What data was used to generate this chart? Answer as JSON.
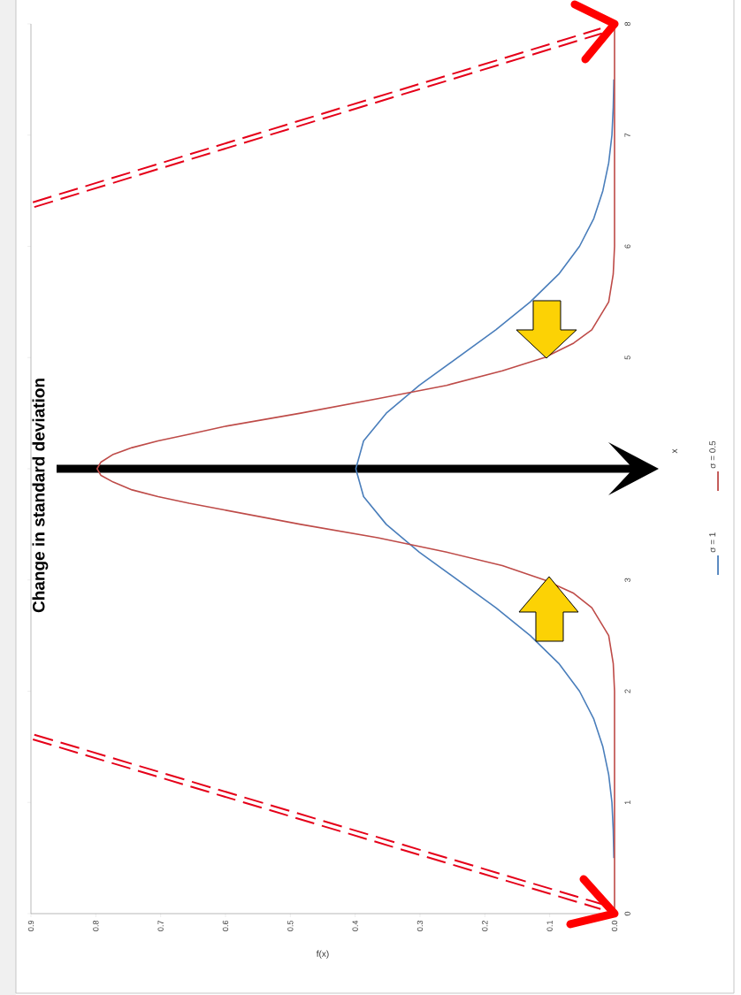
{
  "chart_data": {
    "type": "line",
    "title": "Change in standard deviation",
    "xlabel": "f(x)",
    "ylabel": "x",
    "xlim": [
      0.9,
      0
    ],
    "xticks": [
      0.9,
      0.8,
      0.7,
      0.6,
      0.5,
      0.4,
      0.3,
      0.2,
      0.1,
      {
        "value": 0,
        "label": "0.0"
      }
    ],
    "ylim": [
      0,
      8
    ],
    "yticks": [
      0,
      1,
      2,
      3,
      {
        "value": 4,
        "label": null
      },
      5,
      6,
      7,
      8
    ],
    "legend": "right",
    "series": [
      {
        "name": "σ = 1",
        "color": "#4a7ebb",
        "x": [
          0.001,
          0.002,
          0.004,
          0.009,
          0.018,
          0.032,
          0.054,
          0.086,
          0.13,
          0.183,
          0.242,
          0.301,
          0.352,
          0.387,
          0.399,
          0.387,
          0.352,
          0.301,
          0.242,
          0.183,
          0.13,
          0.086,
          0.054,
          0.032,
          0.018,
          0.009,
          0.004,
          0.002,
          0.001
        ],
        "values": [
          0.5,
          0.75,
          1,
          1.25,
          1.5,
          1.75,
          2,
          2.25,
          2.5,
          2.75,
          3,
          3.25,
          3.5,
          3.75,
          4,
          4.25,
          4.5,
          4.75,
          5,
          5.25,
          5.5,
          5.75,
          6,
          6.25,
          6.5,
          6.75,
          7,
          7.25,
          7.5
        ]
      },
      {
        "name": "σ = 0.5",
        "color": "#be4b48",
        "x": [
          0,
          0,
          0.002,
          0.009,
          0.035,
          0.063,
          0.108,
          0.173,
          0.259,
          0.365,
          0.484,
          0.602,
          0.656,
          0.704,
          0.744,
          0.773,
          0.792,
          0.798,
          0.792,
          0.773,
          0.744,
          0.704,
          0.656,
          0.602,
          0.484,
          0.365,
          0.259,
          0.173,
          0.108,
          0.063,
          0.035,
          0.009,
          0.002,
          0,
          0
        ],
        "values": [
          0,
          2,
          2.25,
          2.5,
          2.75,
          2.88,
          3,
          3.13,
          3.25,
          3.38,
          3.5,
          3.63,
          3.69,
          3.75,
          3.81,
          3.88,
          3.94,
          4,
          4.06,
          4.13,
          4.19,
          4.25,
          4.31,
          4.38,
          4.5,
          4.63,
          4.75,
          4.88,
          5,
          5.13,
          5.25,
          5.5,
          5.75,
          6,
          8
        ]
      }
    ]
  }
}
